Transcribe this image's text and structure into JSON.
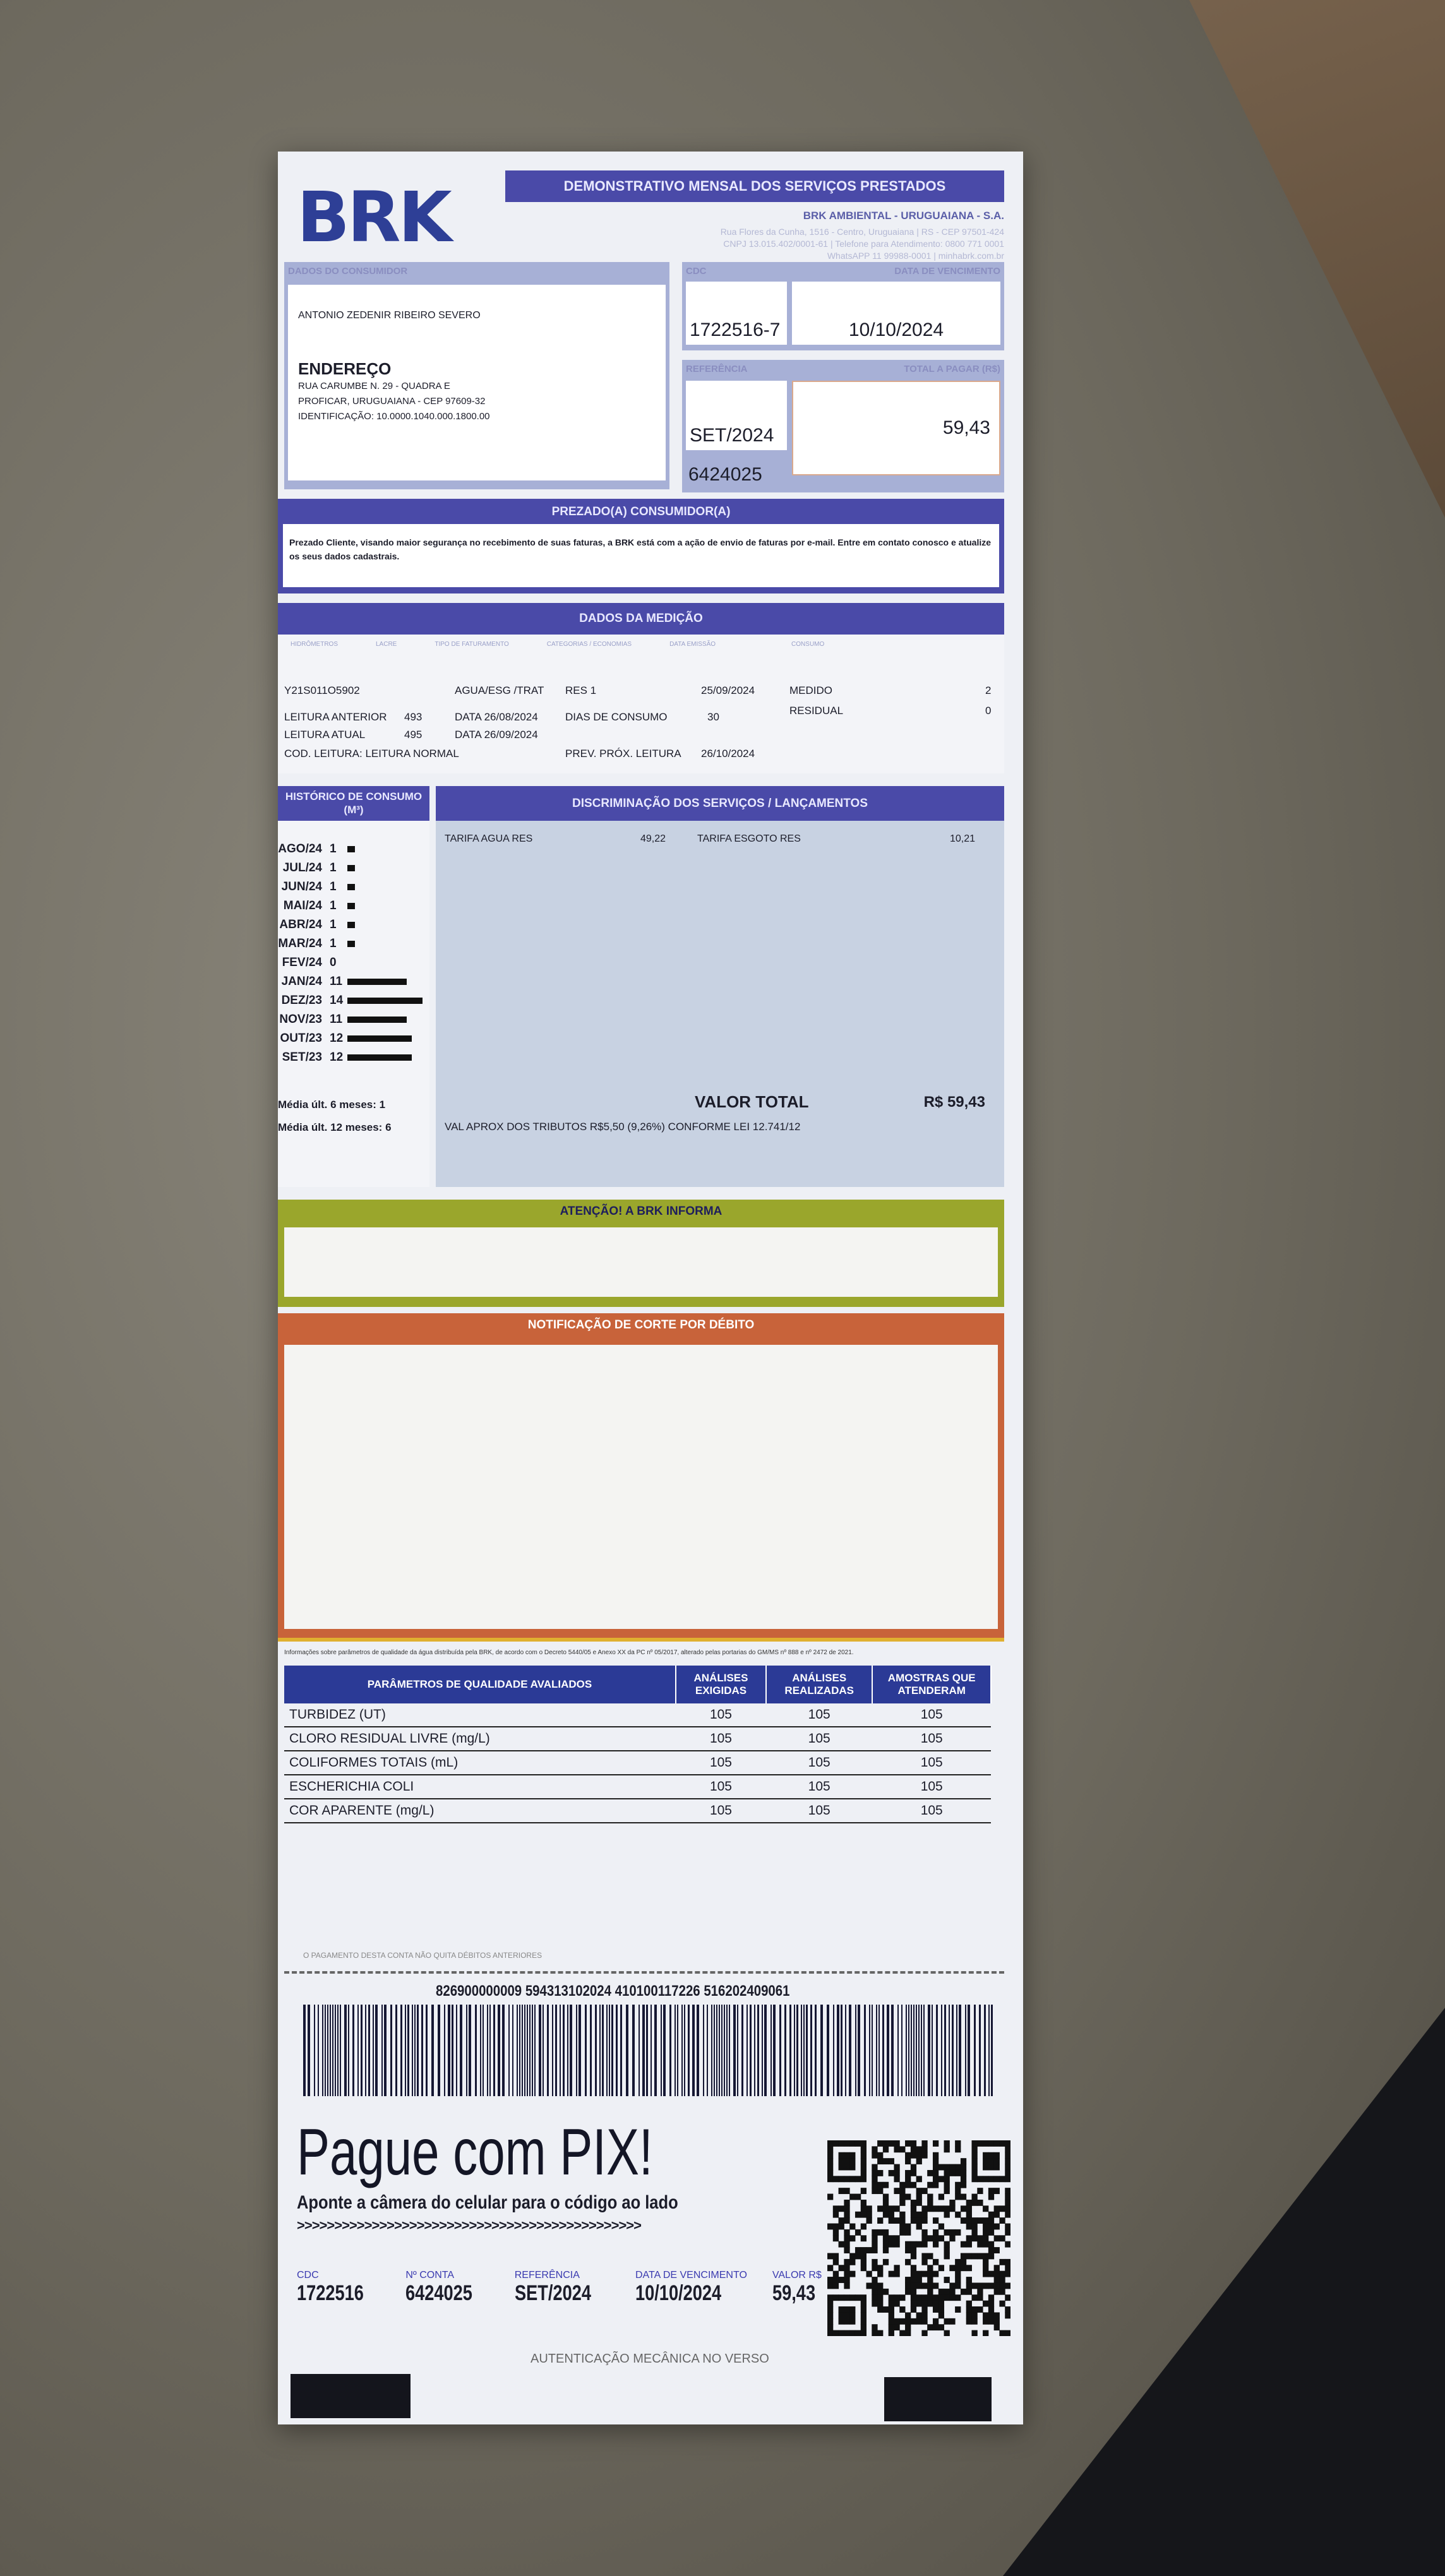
{
  "header": {
    "logo": "BRK",
    "title": "DEMONSTRATIVO MENSAL DOS SERVIÇOS PRESTADOS",
    "company": "BRK AMBIENTAL - URUGUAIANA - S.A.",
    "address_lines": [
      "Rua Flores da Cunha, 1516 - Centro, Uruguaiana | RS - CEP 97501-424",
      "CNPJ 13.015.402/0001-61 | Telefone para Atendimento: 0800 771 0001",
      "WhatsAPP 11 99988-0001 | minhabrk.com.br"
    ]
  },
  "consumer": {
    "label": "DADOS DO CONSUMIDOR",
    "name": "ANTONIO ZEDENIR RIBEIRO SEVERO",
    "address_label": "ENDEREÇO",
    "address": [
      "RUA CARUMBE N. 29 - QUADRA E",
      "PROFICAR, URUGUAIANA - CEP 97609-32",
      "IDENTIFICAÇÃO: 10.0000.1040.000.1800.00"
    ]
  },
  "summary": {
    "cdc_label": "CDC",
    "cdc": "1722516-7",
    "due_label": "DATA DE VENCIMENTO",
    "due": "10/10/2024",
    "ref_label": "REFERÊNCIA",
    "ref": "SET/2024",
    "account": "6424025",
    "total_label": "TOTAL A PAGAR (R$)",
    "total": "59,43"
  },
  "notice": {
    "title": "PREZADO(A) CONSUMIDOR(A)",
    "text": "Prezado Cliente, visando maior segurança no recebimento de suas faturas, a BRK está com a ação de envio de faturas por e-mail. Entre em contato conosco e atualize os seus dados cadastrais."
  },
  "measurement": {
    "title": "DADOS DA MEDIÇÃO",
    "headers": [
      "HIDRÔMETROS",
      "LACRE",
      "TIPO DE FATURAMENTO",
      "CATEGORIAS / ECONOMIAS",
      "DATA EMISSÃO",
      "CONSUMO"
    ],
    "meter": "Y21S011O5902",
    "billing_type": "AGUA/ESG /TRAT",
    "category": "RES 1",
    "issue_date": "25/09/2024",
    "measured_label": "MEDIDO",
    "measured": "2",
    "residual_label": "RESIDUAL",
    "residual": "0",
    "prev_label": "LEITURA ANTERIOR",
    "prev": "493",
    "prev_date": "DATA  26/08/2024",
    "curr_label": "LEITURA ATUAL",
    "curr": "495",
    "curr_date": "DATA  26/09/2024",
    "days_label": "DIAS DE CONSUMO",
    "days": "30",
    "code": "COD. LEITURA: LEITURA NORMAL",
    "next_label": "PREV. PRÓX. LEITURA",
    "next": "26/10/2024"
  },
  "history": {
    "title": "HISTÓRICO DE CONSUMO (M³)",
    "rows": [
      {
        "month": "AGO/24",
        "value": 1
      },
      {
        "month": "JUL/24",
        "value": 1
      },
      {
        "month": "JUN/24",
        "value": 1
      },
      {
        "month": "MAI/24",
        "value": 1
      },
      {
        "month": "ABR/24",
        "value": 1
      },
      {
        "month": "MAR/24",
        "value": 1
      },
      {
        "month": "FEV/24",
        "value": 0
      },
      {
        "month": "JAN/24",
        "value": 11
      },
      {
        "month": "DEZ/23",
        "value": 14
      },
      {
        "month": "NOV/23",
        "value": 11
      },
      {
        "month": "OUT/23",
        "value": 12
      },
      {
        "month": "SET/23",
        "value": 12
      }
    ],
    "avg6": "Média últ. 6 meses: 1",
    "avg12": "Média últ. 12 meses: 6"
  },
  "services": {
    "title": "DISCRIMINAÇÃO DOS SERVIÇOS / LANÇAMENTOS",
    "items": [
      {
        "label": "TARIFA AGUA RES",
        "value": "49,22"
      },
      {
        "label": "TARIFA ESGOTO RES",
        "value": "10,21"
      }
    ],
    "total_label": "VALOR TOTAL",
    "total": "R$ 59,43",
    "taxes": "VAL APROX DOS TRIBUTOS R$5,50 (9,26%) CONFORME LEI 12.741/12"
  },
  "attention": {
    "title": "ATENÇÃO! A BRK INFORMA"
  },
  "cutoff": {
    "title": "NOTIFICAÇÃO DE CORTE POR DÉBITO"
  },
  "quality": {
    "note": "Informações sobre parâmetros de qualidade da água distribuída pela BRK, de acordo com o Decreto 5440/05 e Anexo XX da PC nº 05/2017, alterado pelas portarias do GM/MS nº 888 e nº 2472 de 2021.",
    "headers": [
      "PARÂMETROS DE QUALIDADE AVALIADOS",
      "ANÁLISES EXIGIDAS",
      "ANÁLISES REALIZADAS",
      "AMOSTRAS QUE ATENDERAM"
    ],
    "rows": [
      [
        "TURBIDEZ (UT)",
        "105",
        "105",
        "105"
      ],
      [
        "CLORO RESIDUAL LIVRE (mg/L)",
        "105",
        "105",
        "105"
      ],
      [
        "COLIFORMES TOTAIS (mL)",
        "105",
        "105",
        "105"
      ],
      [
        "ESCHERICHIA COLI",
        "105",
        "105",
        "105"
      ],
      [
        "COR APARENTE (mg/L)",
        "105",
        "105",
        "105"
      ]
    ]
  },
  "payment": {
    "disclaimer": "O PAGAMENTO DESTA CONTA NÃO QUITA DÉBITOS ANTERIORES",
    "barcode_number": "826900000009 594313102024 410100117226 516202409061",
    "pix_title": "Pague  com  PIX!",
    "pix_sub": "Aponte a câmera do celular para o código ao lado",
    "arrows": ">>>>>>>>>>>>>>>>>>>>>>>>>>>>>>>>>>>>>>>>>>>>>>",
    "fields": [
      {
        "label": "CDC",
        "value": "1722516"
      },
      {
        "label": "Nº CONTA",
        "value": "6424025"
      },
      {
        "label": "REFERÊNCIA",
        "value": "SET/2024"
      },
      {
        "label": "DATA DE VENCIMENTO",
        "value": "10/10/2024"
      },
      {
        "label": "VALOR R$",
        "value": "59,43"
      }
    ],
    "auth": "AUTENTICAÇÃO MECÂNICA NO VERSO"
  },
  "colors": {
    "brand": "#2e3f96",
    "bar": "#4a4aa8",
    "attention": "#9aa62c",
    "cutoff": "#c8633a"
  }
}
